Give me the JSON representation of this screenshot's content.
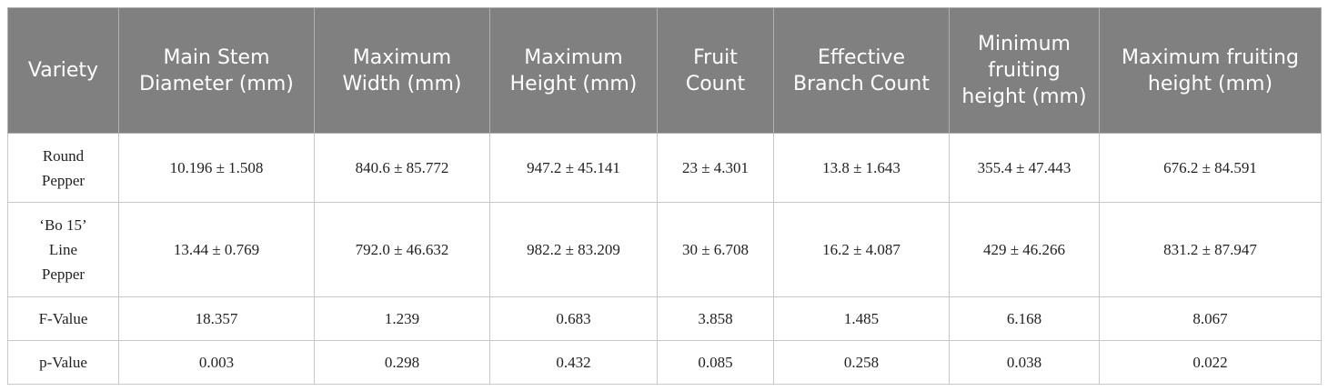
{
  "table": {
    "header": [
      "Variety",
      "Main Stem Diameter (mm)",
      "Maximum Width (mm)",
      "Maximum Height (mm)",
      "Fruit Count",
      "Effective Branch Count",
      "Minimum fruiting height (mm)",
      "Maximum fruiting height (mm)"
    ],
    "rows": [
      [
        "Round Pepper",
        "10.196 ± 1.508",
        "840.6 ± 85.772",
        "947.2 ± 45.141",
        "23 ± 4.301",
        "13.8 ± 1.643",
        "355.4 ± 47.443",
        "676.2 ± 84.591"
      ],
      [
        "‘Bo 15’ Line Pepper",
        "13.44 ± 0.769",
        "792.0 ± 46.632",
        "982.2 ± 83.209",
        "30 ± 6.708",
        "16.2 ± 4.087",
        "429 ± 46.266",
        "831.2 ± 87.947"
      ],
      [
        "F-Value",
        "18.357",
        "1.239",
        "0.683",
        "3.858",
        "1.485",
        "6.168",
        "8.067"
      ],
      [
        "p-Value",
        "0.003",
        "0.298",
        "0.432",
        "0.085",
        "0.258",
        "0.038",
        "0.022"
      ]
    ]
  }
}
